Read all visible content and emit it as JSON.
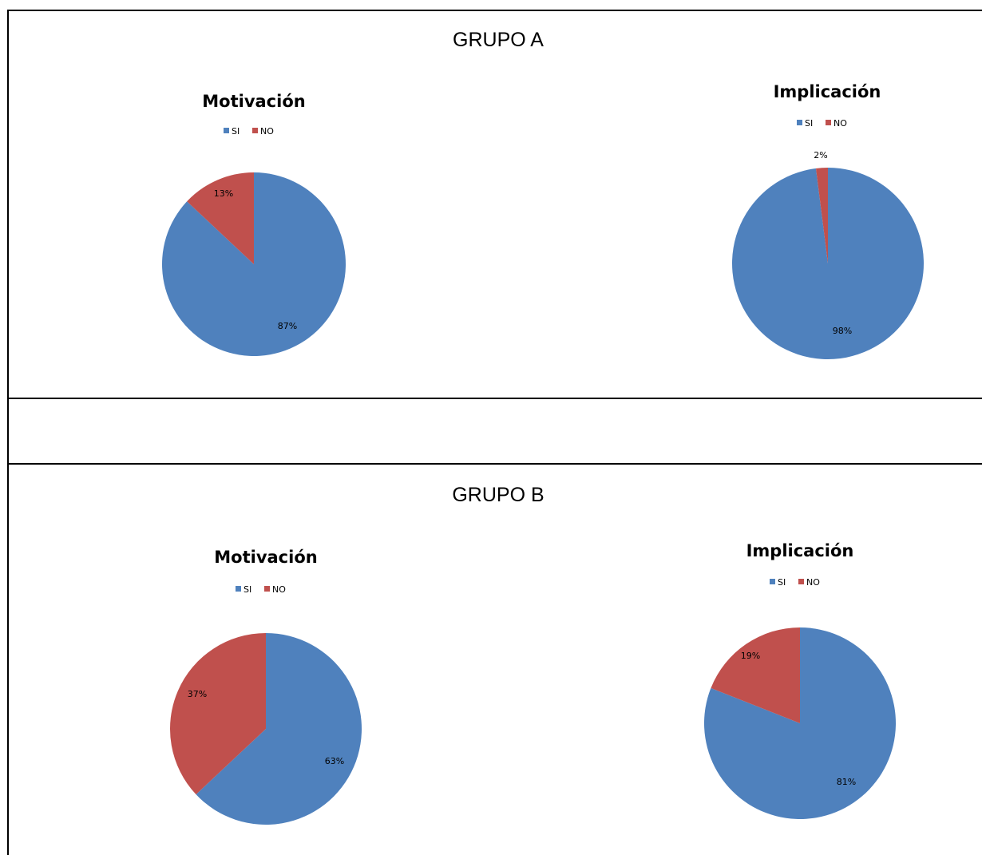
{
  "sections": [
    {
      "title": "GRUPO A"
    },
    {
      "title": "GRUPO B"
    }
  ],
  "chart_data": [
    {
      "type": "pie",
      "group": "GRUPO A",
      "title": "Motivación",
      "legend": [
        "SI",
        "NO"
      ],
      "legend_placement": "top",
      "slices": [
        {
          "label": "SI",
          "value": 87,
          "display": "87%",
          "color": "#4f81bd"
        },
        {
          "label": "NO",
          "value": 13,
          "display": "13%",
          "color": "#c0504d"
        }
      ]
    },
    {
      "type": "pie",
      "group": "GRUPO A",
      "title": "Implicación",
      "legend": [
        "SI",
        "NO"
      ],
      "legend_placement": "top",
      "slices": [
        {
          "label": "SI",
          "value": 98,
          "display": "98%",
          "color": "#4f81bd"
        },
        {
          "label": "NO",
          "value": 2,
          "display": "2%",
          "color": "#c0504d"
        }
      ]
    },
    {
      "type": "pie",
      "group": "GRUPO B",
      "title": "Motivación",
      "legend": [
        "SI",
        "NO"
      ],
      "legend_placement": "top",
      "slices": [
        {
          "label": "SI",
          "value": 63,
          "display": "63%",
          "color": "#4f81bd"
        },
        {
          "label": "NO",
          "value": 37,
          "display": "37%",
          "color": "#c0504d"
        }
      ]
    },
    {
      "type": "pie",
      "group": "GRUPO B",
      "title": "Implicación",
      "legend": [
        "SI",
        "NO"
      ],
      "legend_placement": "top",
      "slices": [
        {
          "label": "SI",
          "value": 81,
          "display": "81%",
          "color": "#4f81bd"
        },
        {
          "label": "NO",
          "value": 19,
          "display": "19%",
          "color": "#c0504d"
        }
      ]
    }
  ]
}
